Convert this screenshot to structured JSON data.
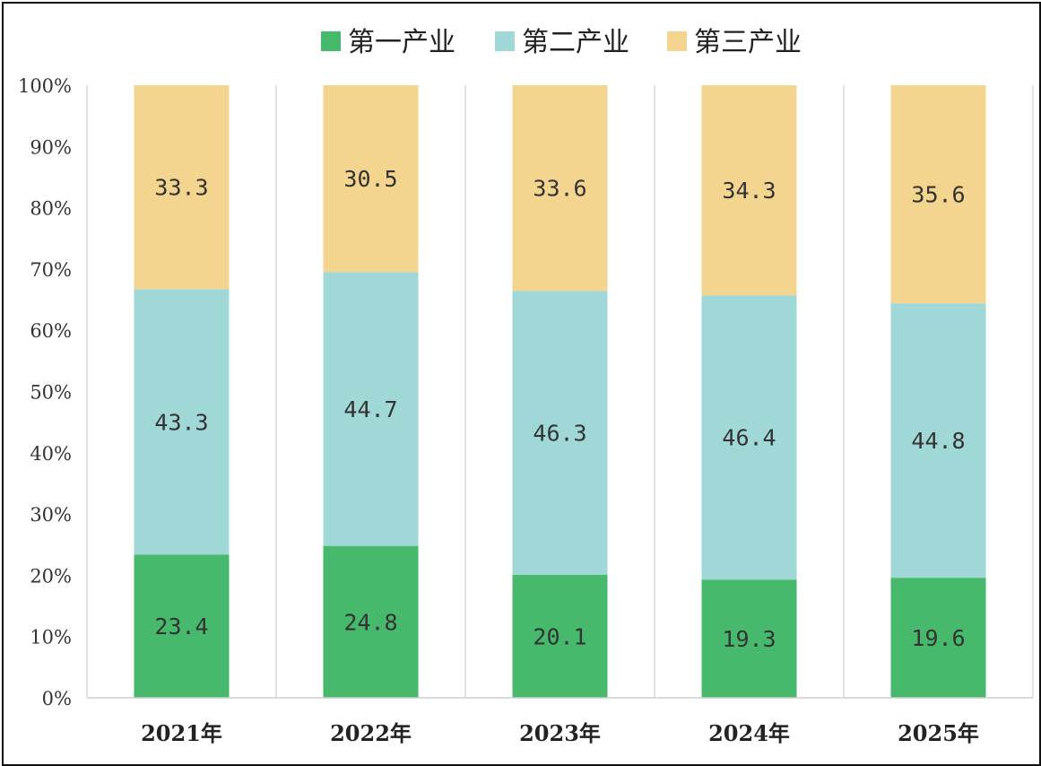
{
  "chart_data": {
    "type": "bar",
    "stacked": true,
    "percent_stacked": true,
    "categories": [
      "2021年",
      "2022年",
      "2023年",
      "2024年",
      "2025年"
    ],
    "series": [
      {
        "name": "第一产业",
        "color": "#47b96c",
        "values": [
          23.4,
          24.8,
          20.1,
          19.3,
          19.6
        ],
        "labels": [
          "23.4",
          "24.8",
          "20.1",
          "19.3",
          "19.6"
        ]
      },
      {
        "name": "第二产业",
        "color": "#9fd8d6",
        "values": [
          43.3,
          44.7,
          46.3,
          46.4,
          44.8
        ],
        "labels": [
          "43.3",
          "44.7",
          "46.3",
          "46.4",
          "44.8"
        ]
      },
      {
        "name": "第三产业",
        "color": "#f4d58f",
        "values": [
          33.3,
          30.5,
          33.6,
          34.3,
          35.6
        ],
        "labels": [
          "33.3",
          "30.5",
          "33.6",
          "34.3",
          "35.6"
        ]
      }
    ],
    "yticks": [
      "0%",
      "10%",
      "20%",
      "30%",
      "40%",
      "50%",
      "60%",
      "70%",
      "80%",
      "90%",
      "100%"
    ],
    "ylim": [
      0,
      100
    ],
    "legend_position": "top-center",
    "grid": "vertical separators between categories"
  }
}
